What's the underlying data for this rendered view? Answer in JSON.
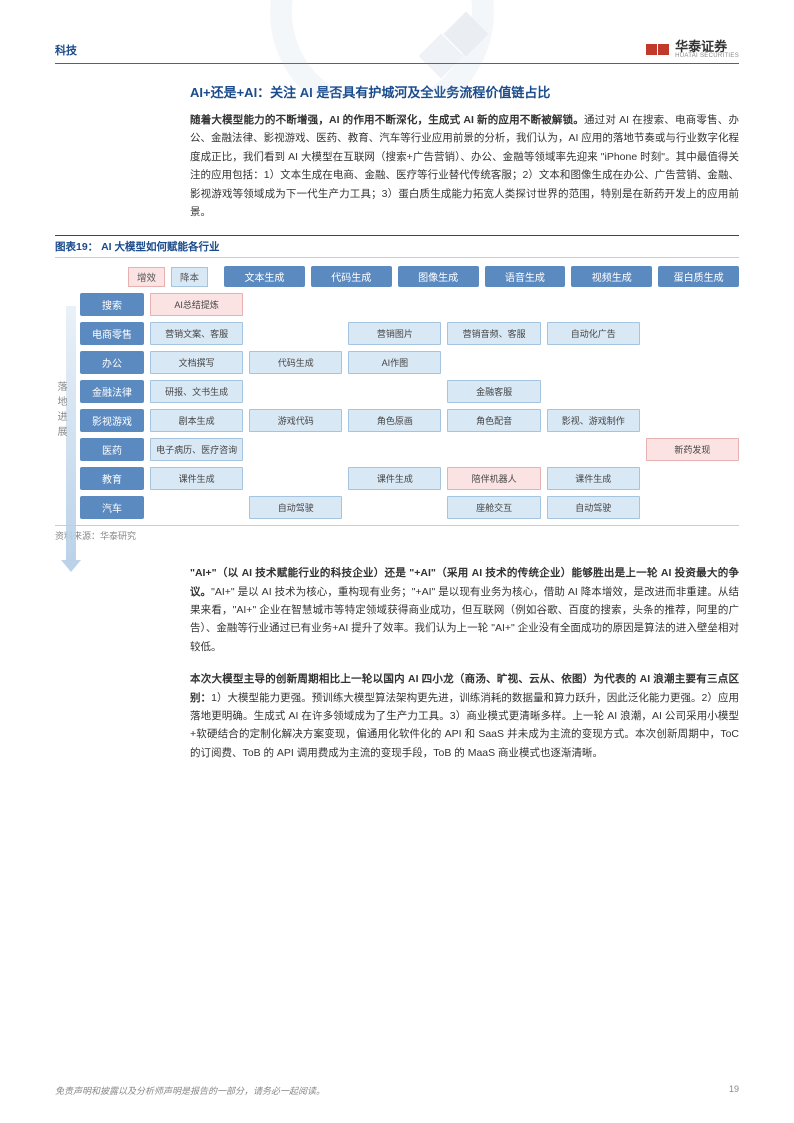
{
  "header": {
    "category": "科技",
    "logo_cn": "华泰证券",
    "logo_en": "HUATAI SECURITIES"
  },
  "section_title": "AI+还是+AI：关注 AI 是否具有护城河及全业务流程价值链占比",
  "para1_bold": "随着大模型能力的不断增强，AI 的作用不断深化，生成式 AI 新的应用不断被解锁。",
  "para1": "通过对 AI 在搜索、电商零售、办公、金融法律、影视游戏、医药、教育、汽车等行业应用前景的分析，我们认为，AI 应用的落地节奏或与行业数字化程度成正比，我们看到 AI 大模型在互联网（搜索+广告营销）、办公、金融等领域率先迎来 \"iPhone 时刻\"。其中最值得关注的应用包括：1）文本生成在电商、金融、医疗等行业替代传统客服；2）文本和图像生成在办公、广告营销、金融、影视游戏等领域成为下一代生产力工具；3）蛋白质生成能力拓宽人类探讨世界的范围，特别是在新药开发上的应用前景。",
  "figure": {
    "title": "图表19： AI 大模型如何赋能各行业",
    "legend_grow": "增效",
    "legend_cost": "降本",
    "side_label": "落地进展",
    "columns": [
      "文本生成",
      "代码生成",
      "图像生成",
      "语音生成",
      "视频生成",
      "蛋白质生成"
    ],
    "rows": [
      {
        "label": "搜索",
        "cells": [
          {
            "t": "AI总结提炼",
            "c": "pink"
          },
          {
            "t": "",
            "c": "empty"
          },
          {
            "t": "",
            "c": "empty"
          },
          {
            "t": "",
            "c": "empty"
          },
          {
            "t": "",
            "c": "empty"
          },
          {
            "t": "",
            "c": "empty"
          }
        ]
      },
      {
        "label": "电商零售",
        "cells": [
          {
            "t": "营销文案、客服",
            "c": "blue"
          },
          {
            "t": "",
            "c": "empty"
          },
          {
            "t": "营销图片",
            "c": "blue"
          },
          {
            "t": "营销音频、客服",
            "c": "blue"
          },
          {
            "t": "自动化广告",
            "c": "blue"
          },
          {
            "t": "",
            "c": "empty"
          }
        ]
      },
      {
        "label": "办公",
        "cells": [
          {
            "t": "文档撰写",
            "c": "blue"
          },
          {
            "t": "代码生成",
            "c": "blue"
          },
          {
            "t": "AI作图",
            "c": "blue"
          },
          {
            "t": "",
            "c": "empty"
          },
          {
            "t": "",
            "c": "empty"
          },
          {
            "t": "",
            "c": "empty"
          }
        ]
      },
      {
        "label": "金融法律",
        "cells": [
          {
            "t": "研报、文书生成",
            "c": "blue"
          },
          {
            "t": "",
            "c": "empty"
          },
          {
            "t": "",
            "c": "empty"
          },
          {
            "t": "金融客服",
            "c": "blue"
          },
          {
            "t": "",
            "c": "empty"
          },
          {
            "t": "",
            "c": "empty"
          }
        ]
      },
      {
        "label": "影视游戏",
        "cells": [
          {
            "t": "剧本生成",
            "c": "blue"
          },
          {
            "t": "游戏代码",
            "c": "blue"
          },
          {
            "t": "角色原画",
            "c": "blue"
          },
          {
            "t": "角色配音",
            "c": "blue"
          },
          {
            "t": "影视、游戏制作",
            "c": "blue"
          },
          {
            "t": "",
            "c": "empty"
          }
        ]
      },
      {
        "label": "医药",
        "cells": [
          {
            "t": "电子病历、医疗咨询",
            "c": "blue"
          },
          {
            "t": "",
            "c": "empty"
          },
          {
            "t": "",
            "c": "empty"
          },
          {
            "t": "",
            "c": "empty"
          },
          {
            "t": "",
            "c": "empty"
          },
          {
            "t": "新药发现",
            "c": "pink"
          }
        ]
      },
      {
        "label": "教育",
        "cells": [
          {
            "t": "课件生成",
            "c": "blue"
          },
          {
            "t": "",
            "c": "empty"
          },
          {
            "t": "课件生成",
            "c": "blue"
          },
          {
            "t": "陪伴机器人",
            "c": "pink"
          },
          {
            "t": "课件生成",
            "c": "blue"
          },
          {
            "t": "",
            "c": "empty"
          }
        ]
      },
      {
        "label": "汽车",
        "cells": [
          {
            "t": "",
            "c": "empty"
          },
          {
            "t": "自动驾驶",
            "c": "blue"
          },
          {
            "t": "",
            "c": "empty"
          },
          {
            "t": "座舱交互",
            "c": "blue"
          },
          {
            "t": "自动驾驶",
            "c": "blue"
          },
          {
            "t": "",
            "c": "empty"
          }
        ]
      }
    ],
    "source": "资料来源：华泰研究",
    "colors": {
      "header_blue": "#5b8ac0",
      "cell_pink_bg": "#fbe3e3",
      "cell_pink_border": "#e8b0b0",
      "cell_blue_bg": "#d9e8f5",
      "cell_blue_border": "#a5c4e0",
      "arrow_gradient_from": "rgba(183,208,232,0.3)",
      "arrow_gradient_to": "rgba(183,208,232,0.95)"
    }
  },
  "para2_bold": "\"AI+\"（以 AI 技术赋能行业的科技企业）还是 \"+AI\"（采用 AI 技术的传统企业）能够胜出是上一轮 AI 投资最大的争议。",
  "para2": "\"AI+\" 是以 AI 技术为核心，重构现有业务；\"+AI\" 是以现有业务为核心，借助 AI 降本增效，是改进而非重建。从结果来看，\"AI+\" 企业在智慧城市等特定领域获得商业成功，但互联网（例如谷歌、百度的搜索，头条的推荐，阿里的广告）、金融等行业通过已有业务+AI 提升了效率。我们认为上一轮 \"AI+\" 企业没有全面成功的原因是算法的进入壁垒相对较低。",
  "para3_bold": "本次大模型主导的创新周期相比上一轮以国内 AI 四小龙（商汤、旷视、云从、依图）为代表的 AI 浪潮主要有三点区别：",
  "para3": "1）大模型能力更强。预训练大模型算法架构更先进，训练消耗的数据量和算力跃升，因此泛化能力更强。2）应用落地更明确。生成式 AI 在许多领域成为了生产力工具。3）商业模式更清晰多样。上一轮 AI 浪潮，AI 公司采用小模型+软硬结合的定制化解决方案变现，偏通用化软件化的 API 和 SaaS 并未成为主流的变现方式。本次创新周期中，ToC 的订阅费、ToB 的 API 调用费成为主流的变现手段，ToB 的 MaaS 商业模式也逐渐清晰。",
  "footer": {
    "disclaimer": "免责声明和披露以及分析师声明是报告的一部分，请务必一起阅读。",
    "page": "19"
  }
}
